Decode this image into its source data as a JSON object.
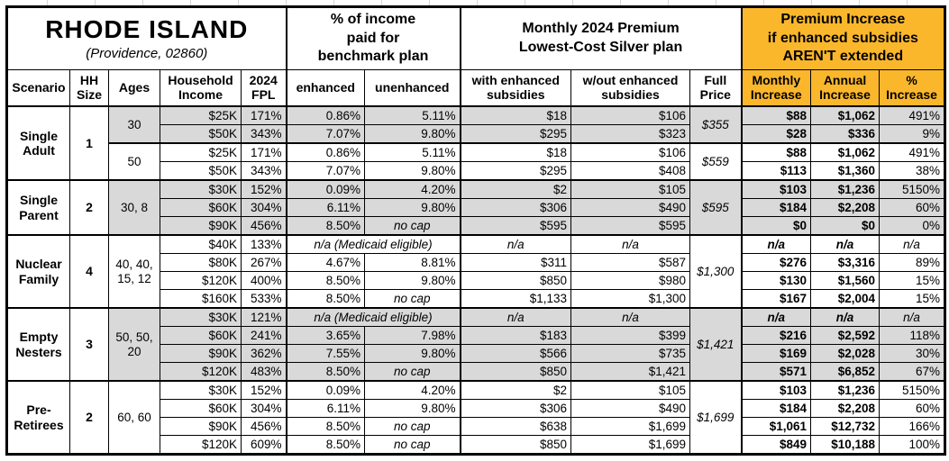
{
  "title": {
    "state": "RHODE ISLAND",
    "subtitle": "(Providence, 02860)"
  },
  "column_groups": {
    "pct_income": "% of income\npaid for\nbenchmark plan",
    "premium": "Monthly 2024 Premium\nLowest-Cost Silver plan",
    "increase": "Premium Increase\nif enhanced subsidies\nAREN'T extended"
  },
  "columns": [
    "Scenario",
    "HH\nSize",
    "Ages",
    "Household\nIncome",
    "2024\nFPL",
    "enhanced",
    "unenhanced",
    "with enhanced\nsubsidies",
    "w/out enhanced\nsubsidies",
    "Full\nPrice",
    "Monthly\nIncrease",
    "Annual\nIncrease",
    "%\nIncrease"
  ],
  "groups": [
    {
      "scenario": "Single\nAdult",
      "hh_size": "1",
      "subgroups": [
        {
          "ages": "30",
          "full_price": "$355",
          "shaded": true,
          "rows": [
            {
              "income": "$25K",
              "fpl": "171%",
              "enhanced": "0.86%",
              "unenhanced": "5.11%",
              "with_sub": "$18",
              "without_sub": "$106",
              "monthly": "$88",
              "annual": "$1,062",
              "pct": "491%"
            },
            {
              "income": "$50K",
              "fpl": "343%",
              "enhanced": "7.07%",
              "unenhanced": "9.80%",
              "with_sub": "$295",
              "without_sub": "$323",
              "monthly": "$28",
              "annual": "$336",
              "pct": "9%"
            }
          ]
        },
        {
          "ages": "50",
          "full_price": "$559",
          "shaded": false,
          "rows": [
            {
              "income": "$25K",
              "fpl": "171%",
              "enhanced": "0.86%",
              "unenhanced": "5.11%",
              "with_sub": "$18",
              "without_sub": "$106",
              "monthly": "$88",
              "annual": "$1,062",
              "pct": "491%"
            },
            {
              "income": "$50K",
              "fpl": "343%",
              "enhanced": "7.07%",
              "unenhanced": "9.80%",
              "with_sub": "$295",
              "without_sub": "$408",
              "monthly": "$113",
              "annual": "$1,360",
              "pct": "38%"
            }
          ]
        }
      ]
    },
    {
      "scenario": "Single\nParent",
      "hh_size": "2",
      "subgroups": [
        {
          "ages": "30, 8",
          "full_price": "$595",
          "shaded": true,
          "rows": [
            {
              "income": "$30K",
              "fpl": "152%",
              "enhanced": "0.09%",
              "unenhanced": "4.20%",
              "with_sub": "$2",
              "without_sub": "$105",
              "monthly": "$103",
              "annual": "$1,236",
              "pct": "5150%"
            },
            {
              "income": "$60K",
              "fpl": "304%",
              "enhanced": "6.11%",
              "unenhanced": "9.80%",
              "with_sub": "$306",
              "without_sub": "$490",
              "monthly": "$184",
              "annual": "$2,208",
              "pct": "60%"
            },
            {
              "income": "$90K",
              "fpl": "456%",
              "enhanced": "8.50%",
              "unenhanced": "no cap",
              "with_sub": "$595",
              "without_sub": "$595",
              "monthly": "$0",
              "annual": "$0",
              "pct": "0%"
            }
          ]
        }
      ]
    },
    {
      "scenario": "Nuclear\nFamily",
      "hh_size": "4",
      "subgroups": [
        {
          "ages": "40, 40,\n15, 12",
          "full_price": "$1,300",
          "shaded": false,
          "rows": [
            {
              "income": "$40K",
              "fpl": "133%",
              "medicaid": true,
              "enhanced": "n/a (Medicaid eligible)",
              "with_sub": "n/a",
              "without_sub": "n/a",
              "monthly": "n/a",
              "annual": "n/a",
              "pct": "n/a"
            },
            {
              "income": "$80K",
              "fpl": "267%",
              "enhanced": "4.67%",
              "unenhanced": "8.81%",
              "with_sub": "$311",
              "without_sub": "$587",
              "monthly": "$276",
              "annual": "$3,316",
              "pct": "89%"
            },
            {
              "income": "$120K",
              "fpl": "400%",
              "enhanced": "8.50%",
              "unenhanced": "9.80%",
              "with_sub": "$850",
              "without_sub": "$980",
              "monthly": "$130",
              "annual": "$1,560",
              "pct": "15%"
            },
            {
              "income": "$160K",
              "fpl": "533%",
              "enhanced": "8.50%",
              "unenhanced": "no cap",
              "with_sub": "$1,133",
              "without_sub": "$1,300",
              "monthly": "$167",
              "annual": "$2,004",
              "pct": "15%"
            }
          ]
        }
      ]
    },
    {
      "scenario": "Empty\nNesters",
      "hh_size": "3",
      "subgroups": [
        {
          "ages": "50, 50,\n20",
          "full_price": "$1,421",
          "shaded": true,
          "rows": [
            {
              "income": "$30K",
              "fpl": "121%",
              "medicaid": true,
              "enhanced": "n/a (Medicaid eligible)",
              "with_sub": "n/a",
              "without_sub": "n/a",
              "monthly": "n/a",
              "annual": "n/a",
              "pct": "n/a"
            },
            {
              "income": "$60K",
              "fpl": "241%",
              "enhanced": "3.65%",
              "unenhanced": "7.98%",
              "with_sub": "$183",
              "without_sub": "$399",
              "monthly": "$216",
              "annual": "$2,592",
              "pct": "118%"
            },
            {
              "income": "$90K",
              "fpl": "362%",
              "enhanced": "7.55%",
              "unenhanced": "9.80%",
              "with_sub": "$566",
              "without_sub": "$735",
              "monthly": "$169",
              "annual": "$2,028",
              "pct": "30%"
            },
            {
              "income": "$120K",
              "fpl": "483%",
              "enhanced": "8.50%",
              "unenhanced": "no cap",
              "with_sub": "$850",
              "without_sub": "$1,421",
              "monthly": "$571",
              "annual": "$6,852",
              "pct": "67%"
            }
          ]
        }
      ]
    },
    {
      "scenario": "Pre-\nRetirees",
      "hh_size": "2",
      "subgroups": [
        {
          "ages": "60, 60",
          "full_price": "$1,699",
          "shaded": false,
          "rows": [
            {
              "income": "$30K",
              "fpl": "152%",
              "enhanced": "0.09%",
              "unenhanced": "4.20%",
              "with_sub": "$2",
              "without_sub": "$105",
              "monthly": "$103",
              "annual": "$1,236",
              "pct": "5150%"
            },
            {
              "income": "$60K",
              "fpl": "304%",
              "enhanced": "6.11%",
              "unenhanced": "9.80%",
              "with_sub": "$306",
              "without_sub": "$490",
              "monthly": "$184",
              "annual": "$2,208",
              "pct": "60%"
            },
            {
              "income": "$90K",
              "fpl": "456%",
              "enhanced": "8.50%",
              "unenhanced": "no cap",
              "with_sub": "$638",
              "without_sub": "$1,699",
              "monthly": "$1,061",
              "annual": "$12,732",
              "pct": "166%"
            },
            {
              "income": "$120K",
              "fpl": "609%",
              "enhanced": "8.50%",
              "unenhanced": "no cap",
              "with_sub": "$850",
              "without_sub": "$1,699",
              "monthly": "$849",
              "annual": "$10,188",
              "pct": "100%"
            }
          ]
        }
      ]
    }
  ],
  "colors": {
    "header_orange": "#FBB72C",
    "row_shading": "#D9D9D9",
    "border": "#000000"
  }
}
